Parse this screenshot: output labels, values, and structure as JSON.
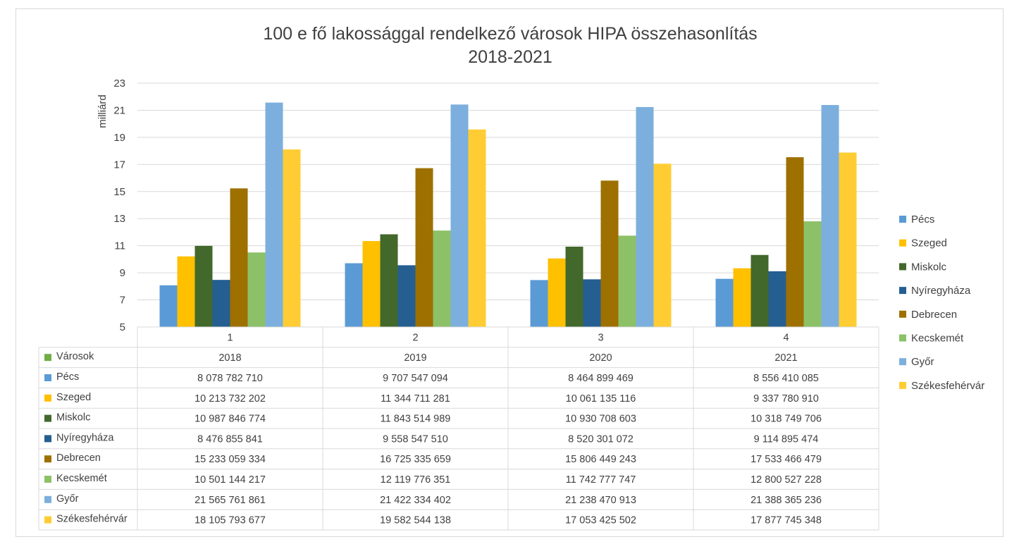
{
  "chart_data": {
    "type": "bar",
    "title": [
      "100 e fő lakossággal rendelkező városok HIPA összehasonlítás",
      "2018-2021"
    ],
    "ylabel": "milliárd",
    "ylim": [
      5,
      23
    ],
    "yticks": [
      5,
      7,
      9,
      11,
      13,
      15,
      17,
      19,
      21,
      23
    ],
    "grid": true,
    "legend_position": "right",
    "categories": [
      "1",
      "2",
      "3",
      "4"
    ],
    "table": {
      "header_label": "Városok",
      "header_color": "#70ad47",
      "years": [
        "2018",
        "2019",
        "2020",
        "2021"
      ]
    },
    "series": [
      {
        "name": "Pécs",
        "color": "#5b9bd5",
        "values": [
          8.07878271,
          9.707547094,
          8.464899469,
          8.556410085
        ],
        "labels": [
          "8 078 782 710",
          "9 707 547 094",
          "8 464 899 469",
          "8 556 410 085"
        ]
      },
      {
        "name": "Szeged",
        "color": "#ffc000",
        "values": [
          10.213732202,
          11.344711281,
          10.061135116,
          9.33778091
        ],
        "labels": [
          "10 213 732 202",
          "11 344 711 281",
          "10 061 135 116",
          "9 337 780 910"
        ]
      },
      {
        "name": "Miskolc",
        "color": "#43682b",
        "values": [
          10.987846774,
          11.843514989,
          10.930708603,
          10.318749706
        ],
        "labels": [
          "10 987 846 774",
          "11 843 514 989",
          "10 930 708 603",
          "10 318 749 706"
        ]
      },
      {
        "name": "Nyíregyháza",
        "color": "#255e91",
        "values": [
          8.476855841,
          9.55854751,
          8.520301072,
          9.114895474
        ],
        "labels": [
          "8 476 855 841",
          "9 558 547 510",
          "8 520 301 072",
          "9 114 895 474"
        ]
      },
      {
        "name": "Debrecen",
        "color": "#9e7000",
        "values": [
          15.233059334,
          16.725335659,
          15.806449243,
          17.533466479
        ],
        "labels": [
          "15 233 059 334",
          "16 725 335 659",
          "15 806 449 243",
          "17 533 466 479"
        ]
      },
      {
        "name": "Kecskemét",
        "color": "#8cc168",
        "values": [
          10.501144217,
          12.119776351,
          11.742777747,
          12.800527228
        ],
        "labels": [
          "10 501 144 217",
          "12 119 776 351",
          "11 742 777 747",
          "12 800 527 228"
        ]
      },
      {
        "name": "Győr",
        "color": "#7cafdd",
        "values": [
          21.565761861,
          21.422334402,
          21.238470913,
          21.388365236
        ],
        "labels": [
          "21 565 761 861",
          "21 422 334 402",
          "21 238 470 913",
          "21 388 365 236"
        ]
      },
      {
        "name": "Székesfehérvár",
        "color": "#ffcd33",
        "values": [
          18.105793677,
          19.582544138,
          17.053425502,
          17.877745348
        ],
        "labels": [
          "18 105 793 677",
          "19 582 544 138",
          "17 053 425 502",
          "17 877 745 348"
        ]
      }
    ]
  }
}
